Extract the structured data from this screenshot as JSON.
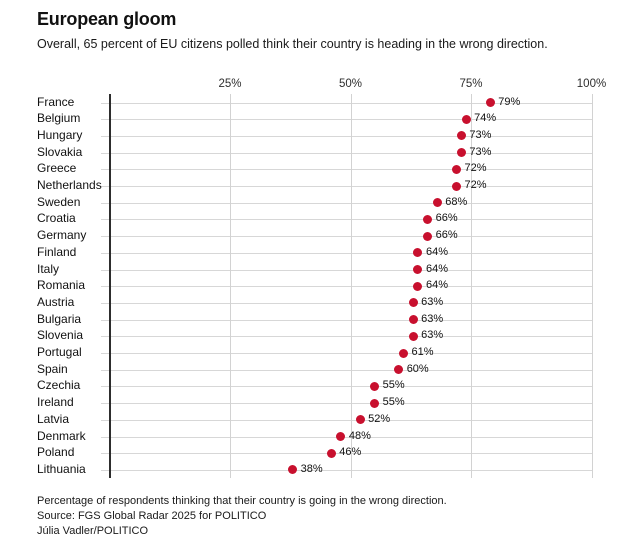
{
  "header": {
    "title": "European gloom",
    "subtitle": "Overall, 65 percent of EU citizens polled think their country is heading in the wrong direction."
  },
  "chart_data": {
    "type": "scatter",
    "subtype": "dot-plot",
    "categories": [
      "France",
      "Belgium",
      "Hungary",
      "Slovakia",
      "Greece",
      "Netherlands",
      "Sweden",
      "Croatia",
      "Germany",
      "Finland",
      "Italy",
      "Romania",
      "Austria",
      "Bulgaria",
      "Slovenia",
      "Portugal",
      "Spain",
      "Czechia",
      "Ireland",
      "Latvia",
      "Denmark",
      "Poland",
      "Lithuania"
    ],
    "values": [
      79,
      74,
      73,
      73,
      72,
      72,
      68,
      66,
      66,
      64,
      64,
      64,
      63,
      63,
      63,
      61,
      60,
      55,
      55,
      52,
      48,
      46,
      38
    ],
    "value_labels": [
      "79%",
      "74%",
      "73%",
      "73%",
      "72%",
      "72%",
      "68%",
      "66%",
      "66%",
      "64%",
      "64%",
      "64%",
      "63%",
      "63%",
      "63%",
      "61%",
      "60%",
      "55%",
      "55%",
      "52%",
      "48%",
      "46%",
      "38%"
    ],
    "title": "European gloom",
    "xlabel": "",
    "ylabel": "",
    "xlim": [
      0,
      100
    ],
    "x_tick_values": [
      25,
      50,
      75,
      100
    ],
    "x_tick_labels": [
      "25%",
      "50%",
      "75%",
      "100%"
    ],
    "grid": true,
    "legend_position": "none",
    "dot_color": "#c8102e",
    "gridline_color": "#d2d2d2",
    "row_line_color": "#d7d7d7",
    "axis_color": "#2d2d2d"
  },
  "footer": {
    "note": "Percentage of respondents thinking that their country is going in the wrong direction.",
    "source": "Source: FGS Global Radar 2025 for POLITICO",
    "credit": "Júlia Vadler/POLITICO"
  }
}
